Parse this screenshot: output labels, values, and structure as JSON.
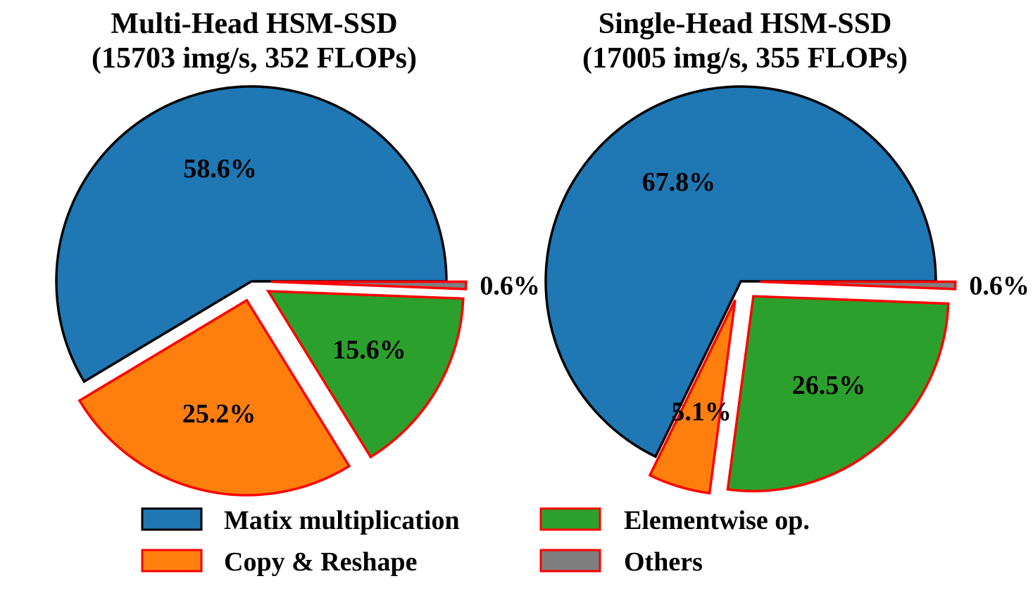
{
  "chart_data": [
    {
      "type": "pie",
      "title_lines": [
        "Multi-Head HSM-SSD",
        "(15703 img/s, 352 FLOPs)"
      ],
      "slices": [
        {
          "category": "Matix multiplication",
          "value": 58.6,
          "label": "58.6%",
          "exploded": false
        },
        {
          "category": "Copy & Reshape",
          "value": 25.2,
          "label": "25.2%",
          "exploded": true
        },
        {
          "category": "Elementwise op.",
          "value": 15.6,
          "label": "15.6%",
          "exploded": true
        },
        {
          "category": "Others",
          "value": 0.6,
          "label": "0.6%",
          "exploded": true
        }
      ]
    },
    {
      "type": "pie",
      "title_lines": [
        "Single-Head HSM-SSD",
        "(17005 img/s, 355 FLOPs)"
      ],
      "slices": [
        {
          "category": "Matix multiplication",
          "value": 67.8,
          "label": "67.8%",
          "exploded": false
        },
        {
          "category": "Copy & Reshape",
          "value": 5.1,
          "label": "5.1%",
          "exploded": true
        },
        {
          "category": "Elementwise op.",
          "value": 26.5,
          "label": "26.5%",
          "exploded": true
        },
        {
          "category": "Others",
          "value": 0.6,
          "label": "0.6%",
          "exploded": true
        }
      ]
    }
  ],
  "legend": {
    "placement": "bottom",
    "items": [
      {
        "label": "Matix multiplication",
        "color": "#1f77b4",
        "edge": "#000000"
      },
      {
        "label": "Elementwise op.",
        "color": "#2ca02c",
        "edge": "#ff0000"
      },
      {
        "label": "Copy & Reshape",
        "color": "#ff7f0e",
        "edge": "#ff0000"
      },
      {
        "label": "Others",
        "color": "#7f7f7f",
        "edge": "#ff0000"
      }
    ]
  },
  "colors": {
    "Matix multiplication": "#1f77b4",
    "Copy & Reshape": "#ff7f0e",
    "Elementwise op.": "#2ca02c",
    "Others": "#7f7f7f",
    "highlight_edge": "#ff0000",
    "default_edge": "#000000"
  }
}
